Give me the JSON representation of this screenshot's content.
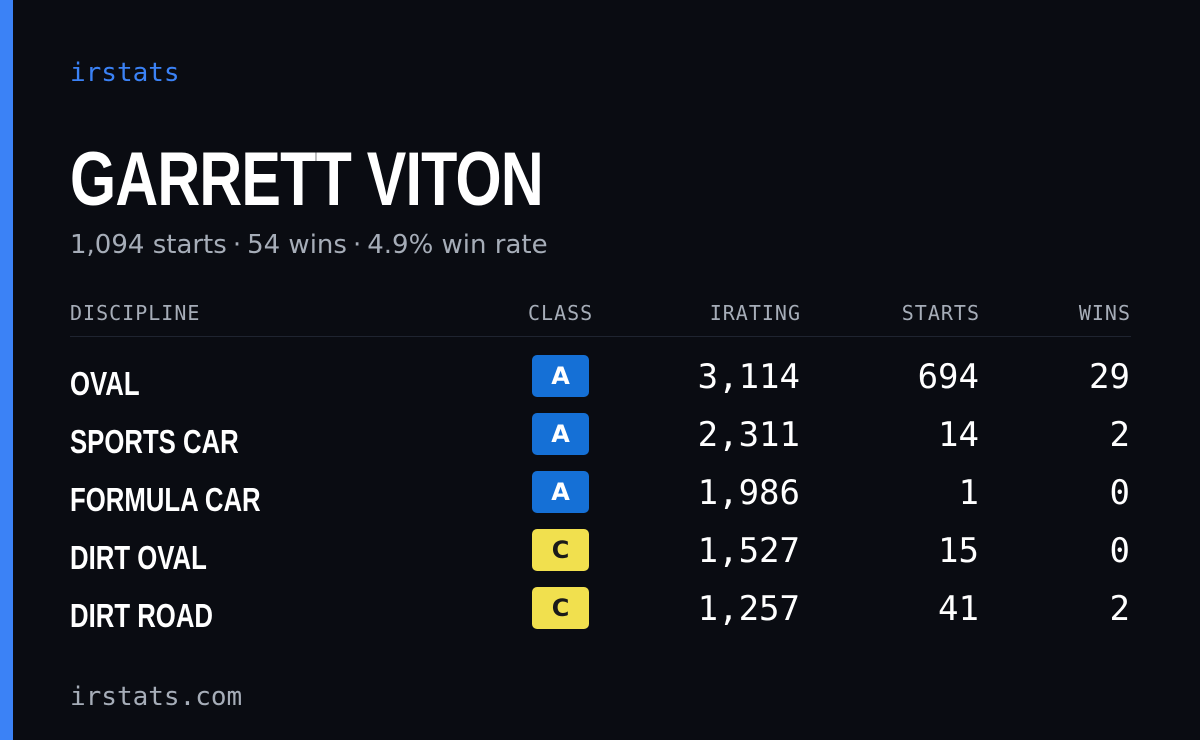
{
  "colors": {
    "background": "#0a0c12",
    "accent": "#3b82f6",
    "muted_text": "#a6adb8",
    "class_a": "#1570d6",
    "class_c": "#f1e04e"
  },
  "header": {
    "brand": "irstats",
    "driver_name": "GARRETT VITON",
    "summary": {
      "starts": "1,094 starts",
      "wins": "54 wins",
      "win_rate": "4.9% win rate",
      "separator": "·"
    }
  },
  "table": {
    "columns": {
      "discipline": "DISCIPLINE",
      "class": "CLASS",
      "irating": "IRATING",
      "starts": "STARTS",
      "wins": "WINS"
    },
    "rows": [
      {
        "discipline": "OVAL",
        "class": "A",
        "irating": "3,114",
        "starts": "694",
        "wins": "29"
      },
      {
        "discipline": "SPORTS CAR",
        "class": "A",
        "irating": "2,311",
        "starts": "14",
        "wins": "2"
      },
      {
        "discipline": "FORMULA CAR",
        "class": "A",
        "irating": "1,986",
        "starts": "1",
        "wins": "0"
      },
      {
        "discipline": "DIRT OVAL",
        "class": "C",
        "irating": "1,527",
        "starts": "15",
        "wins": "0"
      },
      {
        "discipline": "DIRT ROAD",
        "class": "C",
        "irating": "1,257",
        "starts": "41",
        "wins": "2"
      }
    ]
  },
  "footer": {
    "url": "irstats.com"
  }
}
